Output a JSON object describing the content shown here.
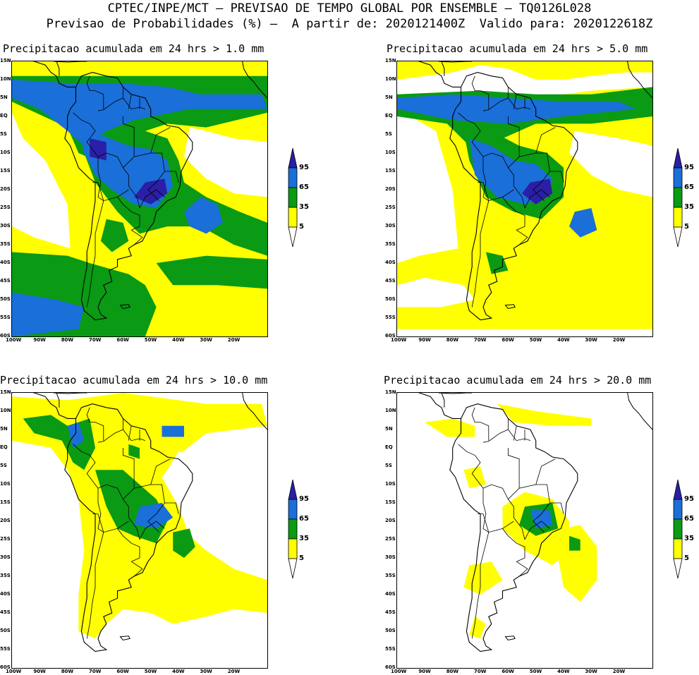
{
  "header": {
    "line1": "CPTEC/INPE/MCT – PREVISAO DE TEMPO GLOBAL POR ENSEMBLE – TQ0126L028",
    "line2": "Previsao de Probabilidades (%) –  A partir de: 2020121400Z  Valido para: 2020122618Z"
  },
  "axis": {
    "lat_labels": [
      "15N",
      "10N",
      "5N",
      "EQ",
      "5S",
      "10S",
      "15S",
      "20S",
      "25S",
      "30S",
      "35S",
      "40S",
      "45S",
      "50S",
      "55S",
      "60S"
    ],
    "lon_labels": [
      "100W",
      "90W",
      "80W",
      "70W",
      "60W",
      "50W",
      "40W",
      "30W",
      "20W"
    ]
  },
  "legend": {
    "levels": [
      "95",
      "65",
      "35",
      "5"
    ],
    "colors": {
      "yellow": "#ffff00",
      "green": "#0a9a14",
      "blue": "#1a6fd8",
      "navy": "#2a1fa6"
    }
  },
  "panels": [
    {
      "title": "Precipitacao acumulada em 24 hrs > 1.0 mm"
    },
    {
      "title": "Precipitacao acumulada em 24 hrs > 5.0 mm"
    },
    {
      "title": "Precipitacao acumulada em 24 hrs > 10.0 mm"
    },
    {
      "title": "Precipitacao acumulada em 24 hrs > 20.0 mm"
    }
  ]
}
